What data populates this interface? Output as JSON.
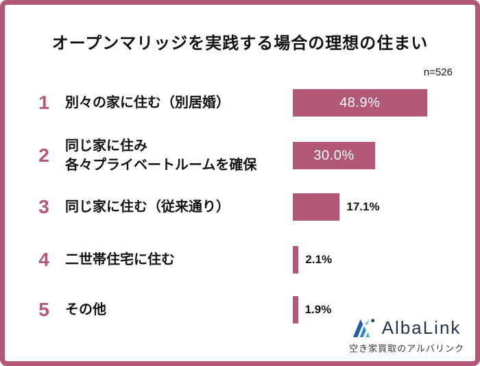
{
  "header": {
    "title": "オープンマリッジを実践する場合の理想の住まい",
    "sample_size": "n=526"
  },
  "rows": [
    {
      "rank": "1",
      "label_line1": "別々の家に住む（別居婚）",
      "label_line2": null,
      "value": 48.9,
      "value_label": "48.9%",
      "value_inside": true
    },
    {
      "rank": "2",
      "label_line1": "同じ家に住み",
      "label_line2": "各々プライベートルームを確保",
      "value": 30.0,
      "value_label": "30.0%",
      "value_inside": true
    },
    {
      "rank": "3",
      "label_line1": "同じ家に住む（従来通り）",
      "label_line2": null,
      "value": 17.1,
      "value_label": "17.1%",
      "value_inside": false
    },
    {
      "rank": "4",
      "label_line1": "二世帯住宅に住む",
      "label_line2": null,
      "value": 2.1,
      "value_label": "2.1%",
      "value_inside": false
    },
    {
      "rank": "5",
      "label_line1": "その他",
      "label_line2": null,
      "value": 1.9,
      "value_label": "1.9%",
      "value_inside": false
    }
  ],
  "chart_data": {
    "type": "bar",
    "orientation": "horizontal",
    "title": "オープンマリッジを実践する場合の理想の住まい",
    "sample_size": "n=526",
    "categories": [
      "別々の家に住む（別居婚）",
      "同じ家に住み 各々プライベートルームを確保",
      "同じ家に住む（従来通り）",
      "二世帯住宅に住む",
      "その他"
    ],
    "values": [
      48.9,
      30.0,
      17.1,
      2.1,
      1.9
    ],
    "value_labels": [
      "48.9%",
      "30.0%",
      "17.1%",
      "2.1%",
      "1.9%"
    ],
    "xlim": [
      0,
      50
    ],
    "grid": false,
    "legend": "none",
    "bar_color": "#b35776",
    "border_color": "#b35776"
  },
  "branding": {
    "logo_name": "AlbaLink",
    "tagline": "空き家買取のアルバリンク",
    "logo_blue_dark": "#1f5fa8",
    "logo_blue_mid": "#2f86c8",
    "logo_blue_light": "#5fb0e0",
    "logo_text_color": "#24344d"
  }
}
